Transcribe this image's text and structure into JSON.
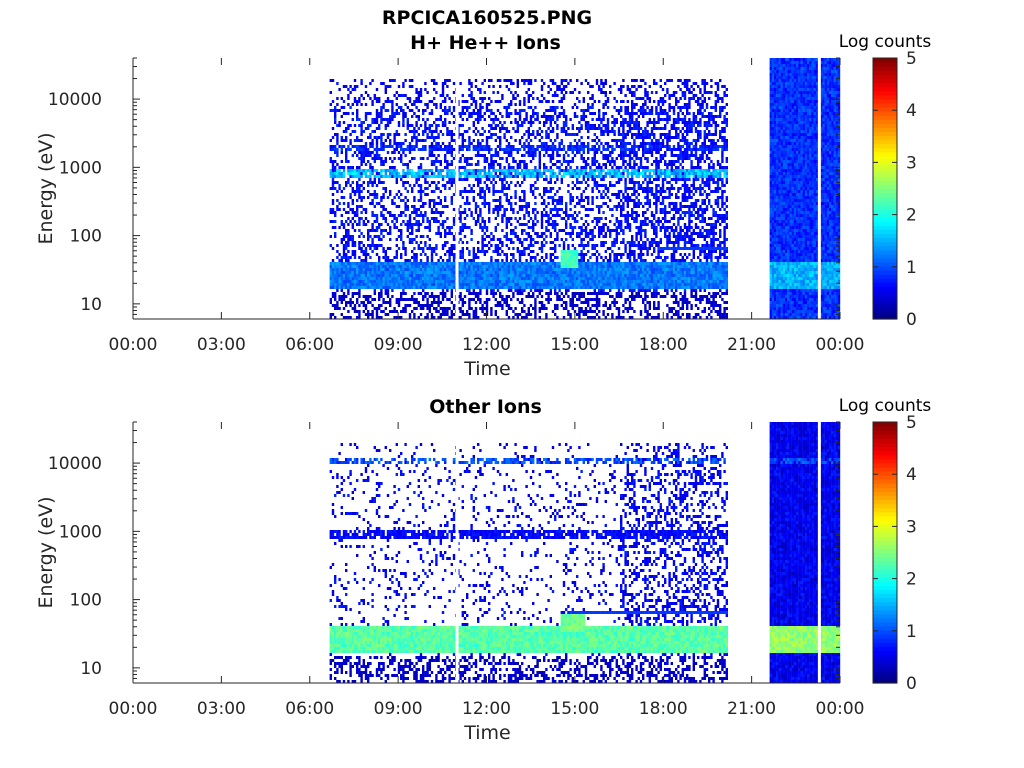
{
  "figure": {
    "title": "RPCICA160525.PNG"
  },
  "colors": {
    "background": "#ffffff",
    "axis": "#262626",
    "data_gap": "#ffffff"
  },
  "chart_data": [
    {
      "type": "heatmap",
      "title": "H+ He++ Ions",
      "xlabel": "Time",
      "ylabel": "Energy (eV)",
      "colorbar_label": "Log counts",
      "xlim_hours": [
        0,
        24
      ],
      "x_ticks": [
        {
          "h": 0,
          "label": "00:00"
        },
        {
          "h": 3,
          "label": "03:00"
        },
        {
          "h": 6,
          "label": "06:00"
        },
        {
          "h": 9,
          "label": "09:00"
        },
        {
          "h": 12,
          "label": "12:00"
        },
        {
          "h": 15,
          "label": "15:00"
        },
        {
          "h": 18,
          "label": "18:00"
        },
        {
          "h": 21,
          "label": "21:00"
        },
        {
          "h": 24,
          "label": "00:00"
        }
      ],
      "ylim_eV": [
        6,
        40000
      ],
      "y_ticks": [
        {
          "v": 10,
          "label": "10"
        },
        {
          "v": 100,
          "label": "100"
        },
        {
          "v": 1000,
          "label": "1000"
        },
        {
          "v": 10000,
          "label": "10000"
        }
      ],
      "clim": [
        0,
        5
      ],
      "cb_ticks": [
        "0",
        "1",
        "2",
        "3",
        "4",
        "5"
      ],
      "coverage_hours": [
        [
          6.6,
          20.15
        ],
        [
          21.55,
          24
        ]
      ],
      "gaps_hours": [
        11.0,
        23.3
      ],
      "features": {
        "background_level": 0.45,
        "background_density": 0.38,
        "background_density_late": 0.55,
        "low_band_eV": [
          18,
          45
        ],
        "low_band_level": 1.2,
        "low_band_level_late": 1.5,
        "mid_band_eV": 850,
        "mid_band_level": 1.7,
        "high_band_eV": 2000,
        "high_band_level": 0.9,
        "hot_spot_hours": [
          14.5,
          15.1
        ],
        "hot_spot_level": 2.2,
        "line_eV": 70,
        "line_hours": [
          17.8,
          20.15
        ],
        "late_block_level": 0.85
      }
    },
    {
      "type": "heatmap",
      "title": "Other Ions",
      "xlabel": "Time",
      "ylabel": "Energy (eV)",
      "colorbar_label": "Log counts",
      "xlim_hours": [
        0,
        24
      ],
      "x_ticks": [
        {
          "h": 0,
          "label": "00:00"
        },
        {
          "h": 3,
          "label": "03:00"
        },
        {
          "h": 6,
          "label": "06:00"
        },
        {
          "h": 9,
          "label": "09:00"
        },
        {
          "h": 12,
          "label": "12:00"
        },
        {
          "h": 15,
          "label": "15:00"
        },
        {
          "h": 18,
          "label": "18:00"
        },
        {
          "h": 21,
          "label": "21:00"
        },
        {
          "h": 24,
          "label": "00:00"
        }
      ],
      "ylim_eV": [
        6,
        40000
      ],
      "y_ticks": [
        {
          "v": 10,
          "label": "10"
        },
        {
          "v": 100,
          "label": "100"
        },
        {
          "v": 1000,
          "label": "1000"
        },
        {
          "v": 10000,
          "label": "10000"
        }
      ],
      "clim": [
        0,
        5
      ],
      "cb_ticks": [
        "0",
        "1",
        "2",
        "3",
        "4",
        "5"
      ],
      "coverage_hours": [
        [
          6.6,
          20.15
        ],
        [
          21.55,
          24
        ]
      ],
      "gaps_hours": [
        11.0,
        23.3
      ],
      "features": {
        "background_level": 0.4,
        "background_density": 0.12,
        "background_density_late": 0.35,
        "low_band_eV": [
          18,
          42
        ],
        "low_band_level": 2.3,
        "low_band_level_late": 2.6,
        "mid_band_eV": 950,
        "mid_band_level": 0.7,
        "high_band_eV": 11000,
        "high_band_level": 1.1,
        "hot_spot_hours": [
          14.5,
          15.3
        ],
        "hot_spot_level": 2.4,
        "line_eV": 70,
        "line_hours": [
          14.8,
          20.15
        ],
        "late_block_level": 0.55
      }
    }
  ]
}
